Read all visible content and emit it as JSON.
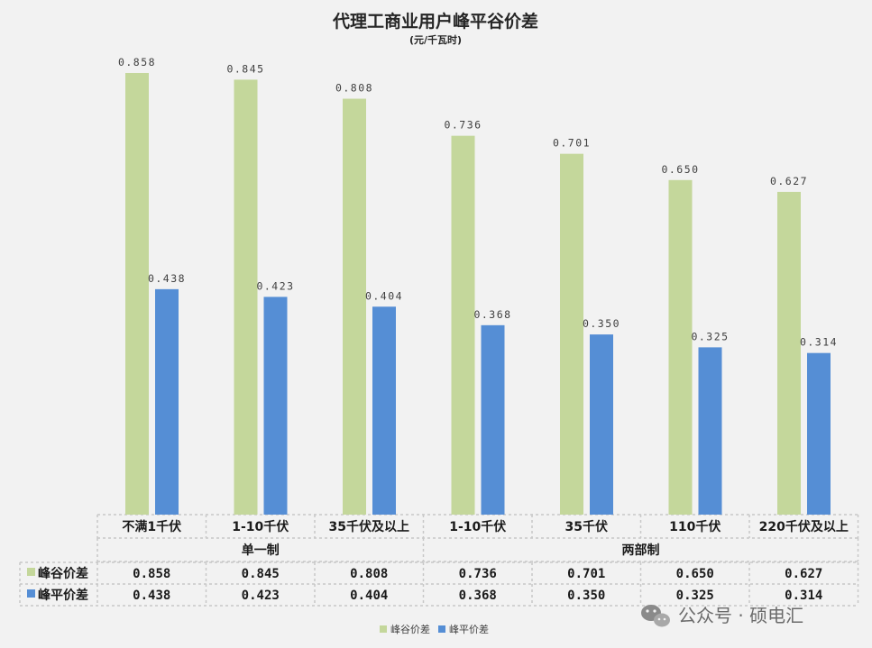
{
  "chart_data": {
    "type": "bar",
    "title": "代理工商业用户峰平谷价差",
    "subtitle": "(元/千瓦时)",
    "categories": [
      "不满1千伏",
      "1-10千伏",
      "35千伏及以上",
      "1-10千伏",
      "35千伏",
      "110千伏",
      "220千伏及以上"
    ],
    "groups": [
      {
        "label": "单一制",
        "count": 3
      },
      {
        "label": "两部制",
        "count": 4
      }
    ],
    "series": [
      {
        "name": "峰谷价差",
        "color": "#c4d79b",
        "values": [
          0.858,
          0.845,
          0.808,
          0.736,
          0.701,
          0.65,
          0.627
        ],
        "labels": [
          "0.858",
          "0.845",
          "0.808",
          "0.736",
          "0.701",
          "0.650",
          "0.627"
        ]
      },
      {
        "name": "峰平价差",
        "color": "#558ed5",
        "values": [
          0.438,
          0.423,
          0.404,
          0.368,
          0.35,
          0.325,
          0.314
        ],
        "labels": [
          "0.438",
          "0.423",
          "0.404",
          "0.368",
          "0.350",
          "0.325",
          "0.314"
        ]
      }
    ],
    "ylim": [
      0,
      0.9
    ],
    "data_table": true,
    "legend_position": "bottom"
  },
  "watermark": "公众号 · 硕电汇"
}
